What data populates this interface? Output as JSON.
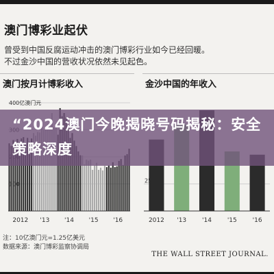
{
  "header": {
    "title": "澳门博彩业起伏",
    "subtitle_line1": "曾受到中国反腐运动冲击的澳门博彩行业如今已经回暖。",
    "subtitle_line2": "不过金沙中国的营收状况依然未见起色。"
  },
  "overlay": {
    "text": "“2024澳门今晚揭晓号码揭秘：安全策略深度"
  },
  "footer": {
    "note": "注：10亿澳门元=1.25亿美元",
    "source": "数据来源：澳门博彩监察协调局",
    "brand": "THE WALL STREET JOURNAL."
  },
  "colors": {
    "bar_dark": "#2b2b2b",
    "bar_light": "#a8a8a8",
    "bar_green": "#7fae7a",
    "grid": "#d0d0d0",
    "axis": "#333333",
    "banner": "#70527a",
    "background": "#f3f2ef"
  },
  "chart_data": [
    {
      "type": "bar",
      "title": "澳门按月计博彩收入",
      "unit_label": "400亿澳门元",
      "ylim": [
        0,
        400
      ],
      "yticks": [
        100,
        200,
        300,
        400
      ],
      "ytick_labels": [
        "100",
        "200",
        "300",
        "400亿澳门元"
      ],
      "xtick_labels": [
        "2012",
        "'13",
        "'14",
        "'15",
        "'16"
      ],
      "grid": true,
      "values": [
        250,
        241,
        262,
        258,
        266,
        254,
        268,
        273,
        253,
        270,
        255,
        268,
        288,
        278,
        292,
        290,
        310,
        300,
        310,
        322,
        300,
        362,
        310,
        322,
        282,
        380,
        350,
        362,
        345,
        316,
        270,
        288,
        260,
        240,
        220,
        206,
        205,
        172,
        190,
        186,
        190,
        152,
        168,
        178,
        152,
        160,
        150,
        167,
        162,
        168,
        160,
        180,
        162,
        165,
        185,
        192,
        170,
        205,
        210,
        230
      ]
    },
    {
      "type": "bar",
      "title": "金沙中国的年收入",
      "unit_label": "",
      "ylim": [
        0,
        100
      ],
      "yticks": [
        25
      ],
      "ytick_labels": [
        "25"
      ],
      "xtick_labels": [
        "2012",
        "'13",
        "'14",
        "'15",
        "'16"
      ],
      "grid": true,
      "categories": [
        "2012",
        "'13",
        "'14",
        "'15",
        "'16"
      ],
      "values": [
        66,
        80,
        93,
        55,
        52
      ]
    }
  ]
}
